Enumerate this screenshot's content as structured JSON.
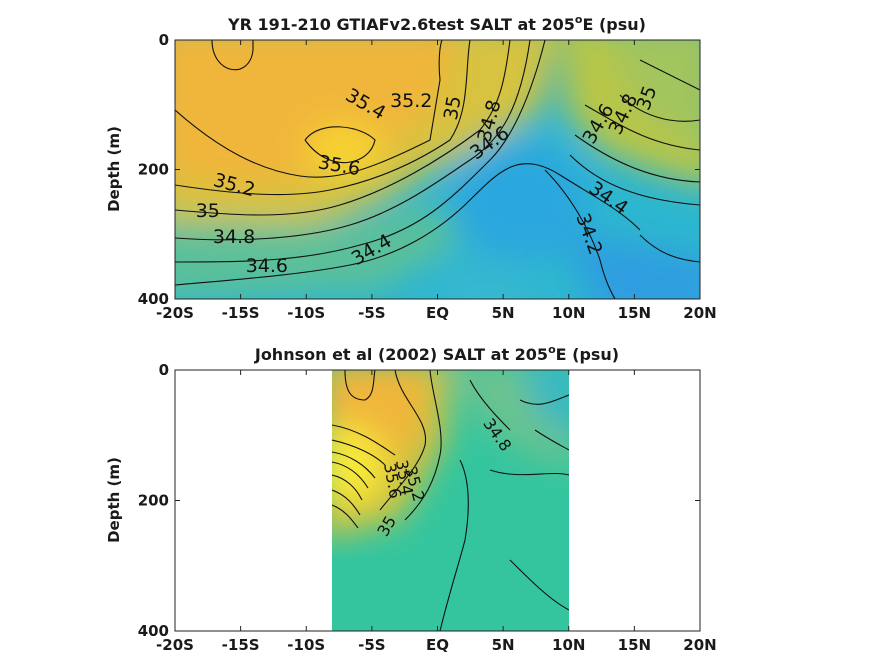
{
  "chart_data": [
    {
      "type": "contour",
      "title_main": "YR 191-210 GTIAFv2.6test SALT at 205",
      "title_sup": "o",
      "title_end": "E (psu)",
      "ylabel": "Depth (m)",
      "xlabel": "",
      "x_ticks": [
        "-20S",
        "-15S",
        "-10S",
        "-5S",
        "EQ",
        "5N",
        "10N",
        "15N",
        "20N"
      ],
      "x_tick_values": [
        -20,
        -15,
        -10,
        -5,
        0,
        5,
        10,
        15,
        20
      ],
      "y_ticks": [
        "0",
        "200",
        "400"
      ],
      "y_tick_values": [
        0,
        200,
        400
      ],
      "xlim": [
        -20,
        20
      ],
      "ylim": [
        0,
        400
      ],
      "y_reversed": true,
      "data_extent_x": [
        -20,
        20
      ],
      "contour_labels": [
        {
          "text": "35.4",
          "x": -5.5,
          "y": 100,
          "angle": 30
        },
        {
          "text": "35.2",
          "x": -2,
          "y": 95,
          "angle": 0
        },
        {
          "text": "35",
          "x": 1.2,
          "y": 105,
          "angle": -80
        },
        {
          "text": "34.8",
          "x": 4,
          "y": 125,
          "angle": -75
        },
        {
          "text": "34.6",
          "x": 4,
          "y": 160,
          "angle": -35
        },
        {
          "text": "35.6",
          "x": -7.5,
          "y": 195,
          "angle": 10
        },
        {
          "text": "35.2",
          "x": -15.5,
          "y": 225,
          "angle": 15
        },
        {
          "text": "35",
          "x": -17.5,
          "y": 265,
          "angle": 0
        },
        {
          "text": "34.8",
          "x": -15.5,
          "y": 305,
          "angle": 0
        },
        {
          "text": "34.6",
          "x": -13,
          "y": 350,
          "angle": 0
        },
        {
          "text": "34.4",
          "x": -5,
          "y": 325,
          "angle": -30
        },
        {
          "text": "34.6",
          "x": 12.3,
          "y": 130,
          "angle": -60
        },
        {
          "text": "34.8",
          "x": 14.2,
          "y": 115,
          "angle": -65
        },
        {
          "text": "35",
          "x": 16,
          "y": 90,
          "angle": -70
        },
        {
          "text": "34.4",
          "x": 13,
          "y": 245,
          "angle": 35
        },
        {
          "text": "34.2",
          "x": 11.5,
          "y": 300,
          "angle": 70
        }
      ]
    },
    {
      "type": "contour",
      "title_main": "Johnson et al (2002) SALT at 205",
      "title_sup": "o",
      "title_end": "E (psu)",
      "ylabel": "Depth (m)",
      "xlabel": "",
      "x_ticks": [
        "-20S",
        "-15S",
        "-10S",
        "-5S",
        "EQ",
        "5N",
        "10N",
        "15N",
        "20N"
      ],
      "x_tick_values": [
        -20,
        -15,
        -10,
        -5,
        0,
        5,
        10,
        15,
        20
      ],
      "y_ticks": [
        "0",
        "200",
        "400"
      ],
      "y_tick_values": [
        0,
        200,
        400
      ],
      "xlim": [
        -20,
        20
      ],
      "ylim": [
        0,
        400
      ],
      "y_reversed": true,
      "data_extent_x": [
        -8,
        10
      ],
      "contour_labels": [
        {
          "text": "34.8",
          "x": 4.5,
          "y": 100,
          "angle": 55
        },
        {
          "text": "35.2",
          "x": -1.8,
          "y": 175,
          "angle": 75
        },
        {
          "text": "35.4",
          "x": -2.6,
          "y": 165,
          "angle": 80
        },
        {
          "text": "35.6",
          "x": -3.5,
          "y": 170,
          "angle": 80
        },
        {
          "text": "35",
          "x": -3.8,
          "y": 240,
          "angle": -60
        }
      ]
    }
  ]
}
